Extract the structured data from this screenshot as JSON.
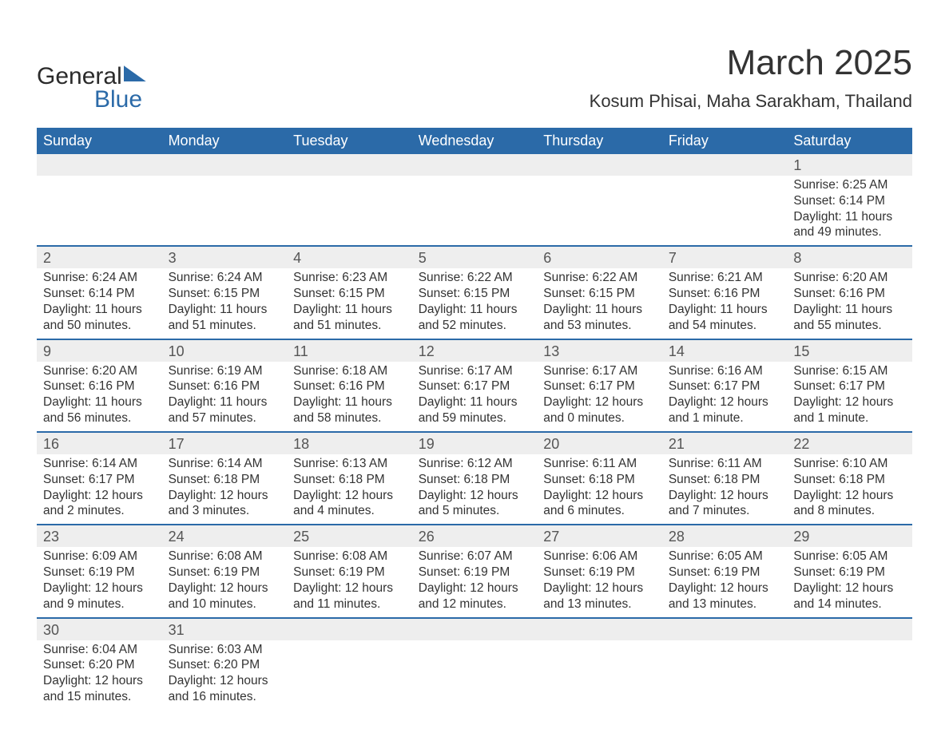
{
  "brand": {
    "part1": "General",
    "part2": "Blue",
    "color_dark": "#2b2b2b",
    "color_blue": "#2b6aa8"
  },
  "title": "March 2025",
  "location": "Kosum Phisai, Maha Sarakham, Thailand",
  "colors": {
    "header_bg": "#2b6aa8",
    "header_text": "#ffffff",
    "daynum_bg": "#eeeeee",
    "border": "#2b6aa8",
    "text": "#333333",
    "page_bg": "#ffffff"
  },
  "typography": {
    "title_size": 44,
    "location_size": 22,
    "header_size": 18,
    "daynum_size": 18,
    "body_size": 15.5
  },
  "weekdays": [
    "Sunday",
    "Monday",
    "Tuesday",
    "Wednesday",
    "Thursday",
    "Friday",
    "Saturday"
  ],
  "weeks": [
    [
      null,
      null,
      null,
      null,
      null,
      null,
      {
        "n": "1",
        "sr": "Sunrise: 6:25 AM",
        "ss": "Sunset: 6:14 PM",
        "dl": "Daylight: 11 hours and 49 minutes."
      }
    ],
    [
      {
        "n": "2",
        "sr": "Sunrise: 6:24 AM",
        "ss": "Sunset: 6:14 PM",
        "dl": "Daylight: 11 hours and 50 minutes."
      },
      {
        "n": "3",
        "sr": "Sunrise: 6:24 AM",
        "ss": "Sunset: 6:15 PM",
        "dl": "Daylight: 11 hours and 51 minutes."
      },
      {
        "n": "4",
        "sr": "Sunrise: 6:23 AM",
        "ss": "Sunset: 6:15 PM",
        "dl": "Daylight: 11 hours and 51 minutes."
      },
      {
        "n": "5",
        "sr": "Sunrise: 6:22 AM",
        "ss": "Sunset: 6:15 PM",
        "dl": "Daylight: 11 hours and 52 minutes."
      },
      {
        "n": "6",
        "sr": "Sunrise: 6:22 AM",
        "ss": "Sunset: 6:15 PM",
        "dl": "Daylight: 11 hours and 53 minutes."
      },
      {
        "n": "7",
        "sr": "Sunrise: 6:21 AM",
        "ss": "Sunset: 6:16 PM",
        "dl": "Daylight: 11 hours and 54 minutes."
      },
      {
        "n": "8",
        "sr": "Sunrise: 6:20 AM",
        "ss": "Sunset: 6:16 PM",
        "dl": "Daylight: 11 hours and 55 minutes."
      }
    ],
    [
      {
        "n": "9",
        "sr": "Sunrise: 6:20 AM",
        "ss": "Sunset: 6:16 PM",
        "dl": "Daylight: 11 hours and 56 minutes."
      },
      {
        "n": "10",
        "sr": "Sunrise: 6:19 AM",
        "ss": "Sunset: 6:16 PM",
        "dl": "Daylight: 11 hours and 57 minutes."
      },
      {
        "n": "11",
        "sr": "Sunrise: 6:18 AM",
        "ss": "Sunset: 6:16 PM",
        "dl": "Daylight: 11 hours and 58 minutes."
      },
      {
        "n": "12",
        "sr": "Sunrise: 6:17 AM",
        "ss": "Sunset: 6:17 PM",
        "dl": "Daylight: 11 hours and 59 minutes."
      },
      {
        "n": "13",
        "sr": "Sunrise: 6:17 AM",
        "ss": "Sunset: 6:17 PM",
        "dl": "Daylight: 12 hours and 0 minutes."
      },
      {
        "n": "14",
        "sr": "Sunrise: 6:16 AM",
        "ss": "Sunset: 6:17 PM",
        "dl": "Daylight: 12 hours and 1 minute."
      },
      {
        "n": "15",
        "sr": "Sunrise: 6:15 AM",
        "ss": "Sunset: 6:17 PM",
        "dl": "Daylight: 12 hours and 1 minute."
      }
    ],
    [
      {
        "n": "16",
        "sr": "Sunrise: 6:14 AM",
        "ss": "Sunset: 6:17 PM",
        "dl": "Daylight: 12 hours and 2 minutes."
      },
      {
        "n": "17",
        "sr": "Sunrise: 6:14 AM",
        "ss": "Sunset: 6:18 PM",
        "dl": "Daylight: 12 hours and 3 minutes."
      },
      {
        "n": "18",
        "sr": "Sunrise: 6:13 AM",
        "ss": "Sunset: 6:18 PM",
        "dl": "Daylight: 12 hours and 4 minutes."
      },
      {
        "n": "19",
        "sr": "Sunrise: 6:12 AM",
        "ss": "Sunset: 6:18 PM",
        "dl": "Daylight: 12 hours and 5 minutes."
      },
      {
        "n": "20",
        "sr": "Sunrise: 6:11 AM",
        "ss": "Sunset: 6:18 PM",
        "dl": "Daylight: 12 hours and 6 minutes."
      },
      {
        "n": "21",
        "sr": "Sunrise: 6:11 AM",
        "ss": "Sunset: 6:18 PM",
        "dl": "Daylight: 12 hours and 7 minutes."
      },
      {
        "n": "22",
        "sr": "Sunrise: 6:10 AM",
        "ss": "Sunset: 6:18 PM",
        "dl": "Daylight: 12 hours and 8 minutes."
      }
    ],
    [
      {
        "n": "23",
        "sr": "Sunrise: 6:09 AM",
        "ss": "Sunset: 6:19 PM",
        "dl": "Daylight: 12 hours and 9 minutes."
      },
      {
        "n": "24",
        "sr": "Sunrise: 6:08 AM",
        "ss": "Sunset: 6:19 PM",
        "dl": "Daylight: 12 hours and 10 minutes."
      },
      {
        "n": "25",
        "sr": "Sunrise: 6:08 AM",
        "ss": "Sunset: 6:19 PM",
        "dl": "Daylight: 12 hours and 11 minutes."
      },
      {
        "n": "26",
        "sr": "Sunrise: 6:07 AM",
        "ss": "Sunset: 6:19 PM",
        "dl": "Daylight: 12 hours and 12 minutes."
      },
      {
        "n": "27",
        "sr": "Sunrise: 6:06 AM",
        "ss": "Sunset: 6:19 PM",
        "dl": "Daylight: 12 hours and 13 minutes."
      },
      {
        "n": "28",
        "sr": "Sunrise: 6:05 AM",
        "ss": "Sunset: 6:19 PM",
        "dl": "Daylight: 12 hours and 13 minutes."
      },
      {
        "n": "29",
        "sr": "Sunrise: 6:05 AM",
        "ss": "Sunset: 6:19 PM",
        "dl": "Daylight: 12 hours and 14 minutes."
      }
    ],
    [
      {
        "n": "30",
        "sr": "Sunrise: 6:04 AM",
        "ss": "Sunset: 6:20 PM",
        "dl": "Daylight: 12 hours and 15 minutes."
      },
      {
        "n": "31",
        "sr": "Sunrise: 6:03 AM",
        "ss": "Sunset: 6:20 PM",
        "dl": "Daylight: 12 hours and 16 minutes."
      },
      null,
      null,
      null,
      null,
      null
    ]
  ]
}
